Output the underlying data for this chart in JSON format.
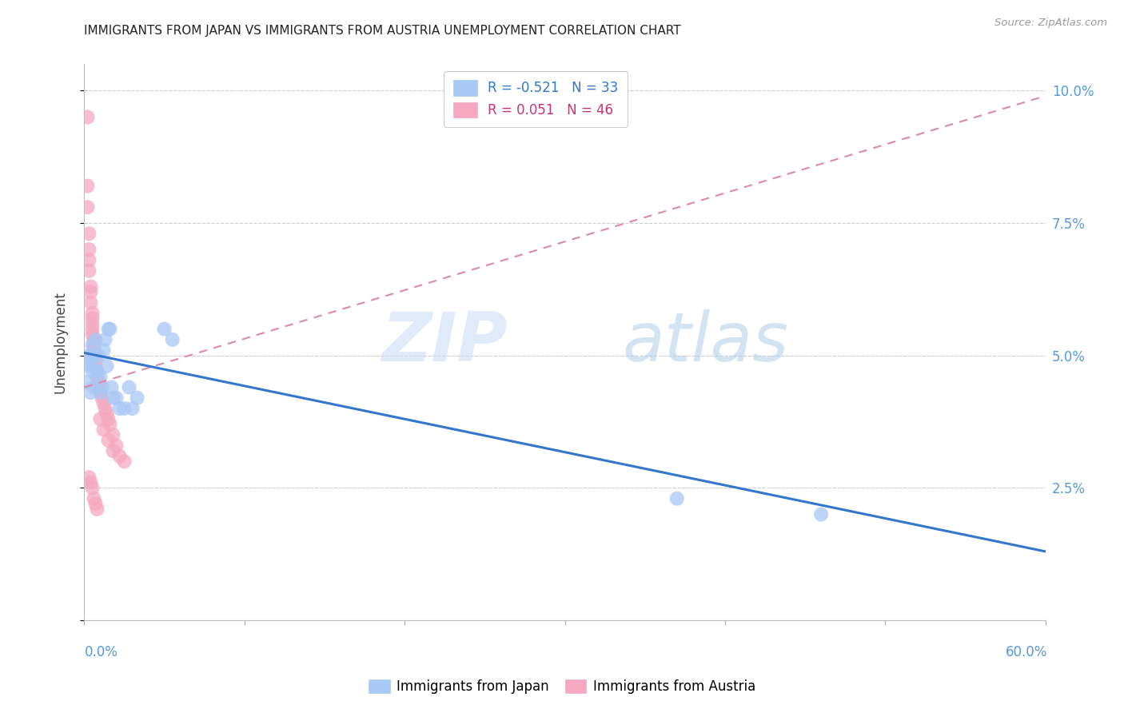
{
  "title": "IMMIGRANTS FROM JAPAN VS IMMIGRANTS FROM AUSTRIA UNEMPLOYMENT CORRELATION CHART",
  "source": "Source: ZipAtlas.com",
  "ylabel": "Unemployment",
  "xlim": [
    0.0,
    0.6
  ],
  "ylim": [
    0.0,
    0.105
  ],
  "legend_R_japan": "-0.521",
  "legend_N_japan": "33",
  "legend_R_austria": " 0.051",
  "legend_N_austria": "46",
  "japan_color": "#a8c8f5",
  "austria_color": "#f5a8c0",
  "japan_line_color": "#3377cc",
  "austria_trendline_color": "#dd88aa",
  "watermark_zip": "ZIP",
  "watermark_atlas": "atlas",
  "japan_x": [
    0.003,
    0.003,
    0.004,
    0.005,
    0.005,
    0.006,
    0.007,
    0.008,
    0.009,
    0.01,
    0.011,
    0.012,
    0.013,
    0.014,
    0.015,
    0.016,
    0.017,
    0.018,
    0.02,
    0.022,
    0.025,
    0.028,
    0.03,
    0.033,
    0.05,
    0.055,
    0.37,
    0.46,
    0.002,
    0.004,
    0.006,
    0.008,
    0.01
  ],
  "japan_y": [
    0.05,
    0.049,
    0.048,
    0.052,
    0.047,
    0.05,
    0.053,
    0.047,
    0.05,
    0.046,
    0.044,
    0.051,
    0.053,
    0.048,
    0.055,
    0.055,
    0.044,
    0.042,
    0.042,
    0.04,
    0.04,
    0.044,
    0.04,
    0.042,
    0.055,
    0.053,
    0.023,
    0.02,
    0.045,
    0.043,
    0.044,
    0.047,
    0.043
  ],
  "austria_x": [
    0.002,
    0.002,
    0.002,
    0.003,
    0.003,
    0.003,
    0.003,
    0.004,
    0.004,
    0.004,
    0.005,
    0.005,
    0.005,
    0.005,
    0.005,
    0.006,
    0.006,
    0.006,
    0.007,
    0.007,
    0.007,
    0.008,
    0.008,
    0.009,
    0.009,
    0.01,
    0.011,
    0.012,
    0.013,
    0.014,
    0.015,
    0.016,
    0.018,
    0.02,
    0.022,
    0.025,
    0.003,
    0.004,
    0.005,
    0.006,
    0.007,
    0.008,
    0.01,
    0.012,
    0.015,
    0.018
  ],
  "austria_y": [
    0.095,
    0.082,
    0.078,
    0.073,
    0.07,
    0.068,
    0.066,
    0.063,
    0.062,
    0.06,
    0.058,
    0.057,
    0.056,
    0.055,
    0.054,
    0.053,
    0.052,
    0.051,
    0.05,
    0.049,
    0.048,
    0.047,
    0.046,
    0.045,
    0.044,
    0.043,
    0.042,
    0.041,
    0.04,
    0.039,
    0.038,
    0.037,
    0.035,
    0.033,
    0.031,
    0.03,
    0.027,
    0.026,
    0.025,
    0.023,
    0.022,
    0.021,
    0.038,
    0.036,
    0.034,
    0.032
  ],
  "jp_trend_x": [
    0.0,
    0.6
  ],
  "jp_trend_y": [
    0.0505,
    0.013
  ],
  "at_trend_x": [
    0.0,
    0.6
  ],
  "at_trend_y": [
    0.044,
    0.099
  ],
  "ytick_vals": [
    0.0,
    0.025,
    0.05,
    0.075,
    0.1
  ],
  "ytick_labels": [
    "",
    "2.5%",
    "5.0%",
    "7.5%",
    "10.0%"
  ],
  "xtick_vals": [
    0.0,
    0.1,
    0.2,
    0.3,
    0.4,
    0.5,
    0.6
  ]
}
